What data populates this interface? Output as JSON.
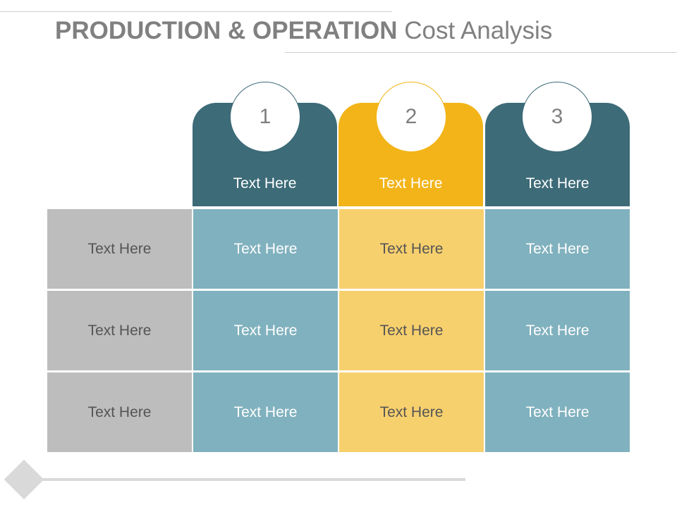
{
  "title": {
    "bold": "PRODUCTION & OPERATION",
    "light": " Cost Analysis"
  },
  "colors": {
    "teal_dark": "#3d6b78",
    "gold_dark": "#f2b418",
    "teal_light": "#80b1be",
    "gold_light": "#f7d06e",
    "gray": "#bdbdbd",
    "title_gray": "#808080"
  },
  "columns": [
    {
      "number": "1",
      "label": "Text Here",
      "theme": "teal"
    },
    {
      "number": "2",
      "label": "Text Here",
      "theme": "gold"
    },
    {
      "number": "3",
      "label": "Text Here",
      "theme": "teal"
    }
  ],
  "rows": [
    {
      "label": "Text Here",
      "cells": [
        "Text Here",
        "Text Here",
        "Text Here"
      ]
    },
    {
      "label": "Text Here",
      "cells": [
        "Text Here",
        "Text Here",
        "Text Here"
      ]
    },
    {
      "label": "Text Here",
      "cells": [
        "Text Here",
        "Text Here",
        "Text Here"
      ]
    }
  ]
}
